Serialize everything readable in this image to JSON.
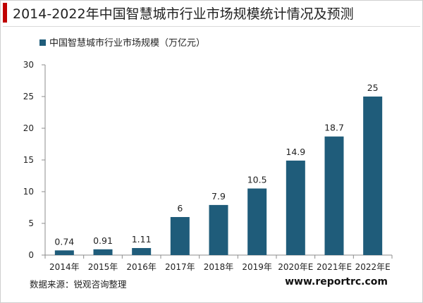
{
  "page": {
    "title": "2014-2022年中国智慧城市行业市场规模统计情况及预测",
    "source": "数据来源：锐观咨询整理",
    "website": "www.reportrc.com"
  },
  "colors": {
    "bar": "#1f5c7a",
    "accent": "#c00000",
    "axis": "#8c8c8c",
    "text": "#222222"
  },
  "chart_data": {
    "type": "bar",
    "title": "",
    "legend": "中国智慧城市行业市场规模（万亿元）",
    "legend_position": "top-left",
    "categories": [
      "2014年",
      "2015年",
      "2016年",
      "2017年",
      "2018年",
      "2019年",
      "2020年E",
      "2021年E",
      "2022年E"
    ],
    "values": [
      0.74,
      0.91,
      1.11,
      6,
      7.9,
      10.5,
      14.9,
      18.7,
      25
    ],
    "value_labels": [
      "0.74",
      "0.91",
      "1.11",
      "6",
      "7.9",
      "10.5",
      "14.9",
      "18.7",
      "25"
    ],
    "ylim": [
      0,
      30
    ],
    "yticks": [
      0,
      5,
      10,
      15,
      20,
      25,
      30
    ],
    "xlabel": "",
    "ylabel": "",
    "grid": false
  }
}
